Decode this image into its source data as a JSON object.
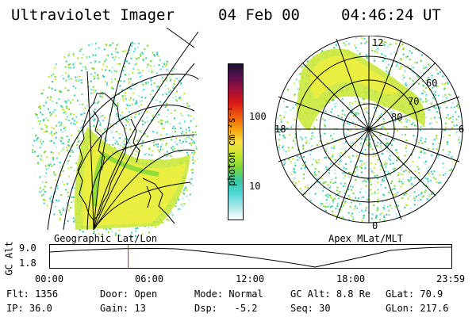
{
  "header": {
    "instrument": "Ultraviolet Imager",
    "date": "04 Feb 00",
    "time": "04:46:24 UT"
  },
  "colorbar": {
    "unit_label": "photon cm⁻²s⁻¹",
    "ticks": [
      "100",
      "10"
    ],
    "colors": [
      "#1a0f2e",
      "#5a1050",
      "#a0103a",
      "#d81a14",
      "#f05a10",
      "#f8a010",
      "#f8e040",
      "#c8e830",
      "#7cd838",
      "#38c8a8",
      "#50d8d8",
      "#a8e8e8",
      "#ffffff"
    ]
  },
  "left_map": {
    "caption": "Geographic Lat/Lon"
  },
  "right_map": {
    "caption": "Apex MLat/MLT",
    "mlt_labels": {
      "top": "12",
      "left": "18",
      "right": "6",
      "bottom": "0"
    },
    "lat_labels": [
      "60",
      "70",
      "80"
    ]
  },
  "timeline": {
    "axis_label": "GC Alt",
    "y_ticks": [
      "9.0",
      "1.8"
    ],
    "x_ticks": [
      "00:00",
      "06:00",
      "12:00",
      "18:00",
      "23:59"
    ],
    "current_time_fraction": 0.195,
    "marker_color": "#cc2020"
  },
  "status": {
    "flt_label": "Flt:",
    "flt_value": "1356",
    "ip_label": "IP:",
    "ip_value": "36.0",
    "door_label": "Door:",
    "door_value": "Open",
    "gain_label": "Gain:",
    "gain_value": "13",
    "mode_label": "Mode:",
    "mode_value": "Normal",
    "dsp_label": "Dsp:",
    "dsp_value": "-5.2",
    "gcalt_label": "GC Alt:",
    "gcalt_value": "8.8 Re",
    "seq_label": "Seq:",
    "seq_value": "30",
    "glat_label": "GLat:",
    "glat_value": "70.9",
    "glon_label": "GLon:",
    "glon_value": "217.6"
  }
}
